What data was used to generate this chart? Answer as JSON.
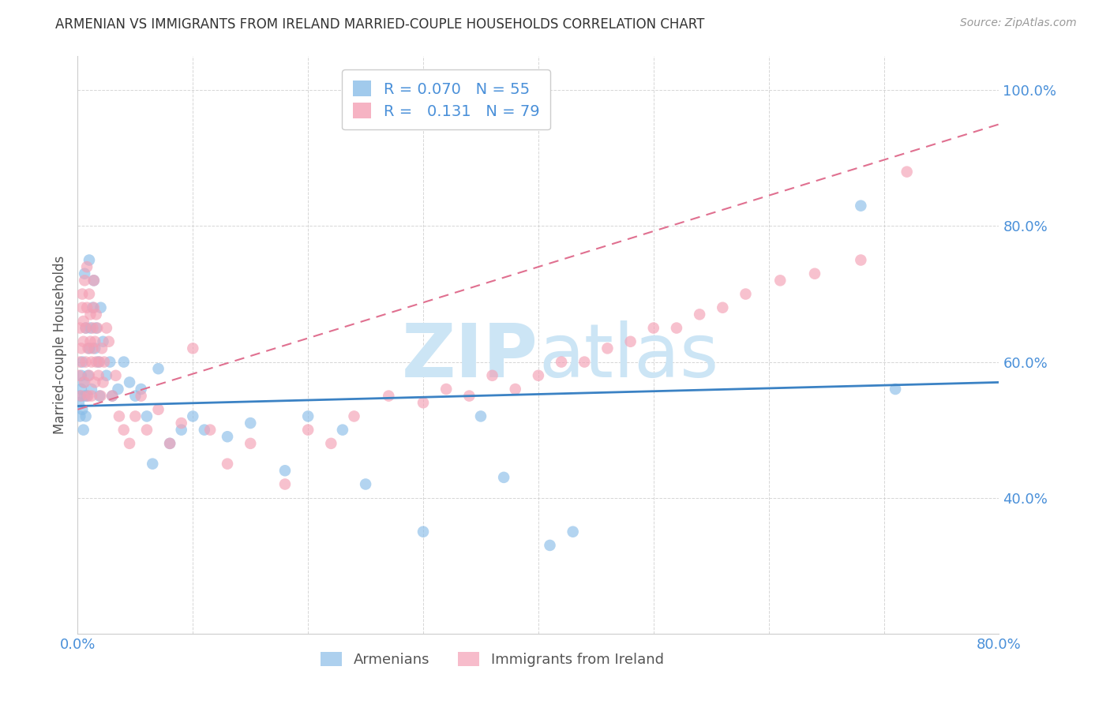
{
  "title": "ARMENIAN VS IMMIGRANTS FROM IRELAND MARRIED-COUPLE HOUSEHOLDS CORRELATION CHART",
  "source": "Source: ZipAtlas.com",
  "ylabel": "Married-couple Households",
  "xlim": [
    0,
    0.8
  ],
  "ylim": [
    0.2,
    1.05
  ],
  "xticks": [
    0.0,
    0.1,
    0.2,
    0.3,
    0.4,
    0.5,
    0.6,
    0.7,
    0.8
  ],
  "xticklabels": [
    "0.0%",
    "",
    "",
    "",
    "",
    "",
    "",
    "",
    "80.0%"
  ],
  "yticks": [
    0.4,
    0.6,
    0.8,
    1.0
  ],
  "yticklabels": [
    "40.0%",
    "60.0%",
    "80.0%",
    "100.0%"
  ],
  "legend1_label": "Armenians",
  "legend2_label": "Immigrants from Ireland",
  "R_armenian": 0.07,
  "N_armenian": 55,
  "R_ireland": 0.131,
  "N_ireland": 79,
  "color_armenian": "#8abde8",
  "color_ireland": "#f4a0b5",
  "color_armenian_line": "#3b82c4",
  "color_ireland_line": "#e07090",
  "watermark_color": "#cce5f5",
  "background_color": "#ffffff",
  "armenian_x": [
    0.001,
    0.002,
    0.002,
    0.003,
    0.003,
    0.004,
    0.004,
    0.005,
    0.005,
    0.006,
    0.006,
    0.007,
    0.007,
    0.008,
    0.009,
    0.01,
    0.01,
    0.011,
    0.012,
    0.013,
    0.014,
    0.015,
    0.016,
    0.018,
    0.019,
    0.02,
    0.022,
    0.025,
    0.028,
    0.03,
    0.035,
    0.04,
    0.045,
    0.05,
    0.055,
    0.06,
    0.065,
    0.07,
    0.08,
    0.09,
    0.1,
    0.11,
    0.13,
    0.15,
    0.18,
    0.2,
    0.23,
    0.25,
    0.3,
    0.35,
    0.37,
    0.41,
    0.43,
    0.68,
    0.71
  ],
  "armenian_y": [
    0.54,
    0.52,
    0.55,
    0.58,
    0.56,
    0.53,
    0.6,
    0.57,
    0.5,
    0.55,
    0.73,
    0.52,
    0.65,
    0.55,
    0.58,
    0.62,
    0.75,
    0.65,
    0.56,
    0.68,
    0.72,
    0.62,
    0.65,
    0.6,
    0.55,
    0.68,
    0.63,
    0.58,
    0.6,
    0.55,
    0.56,
    0.6,
    0.57,
    0.55,
    0.56,
    0.52,
    0.45,
    0.59,
    0.48,
    0.5,
    0.52,
    0.5,
    0.49,
    0.51,
    0.44,
    0.52,
    0.5,
    0.42,
    0.35,
    0.52,
    0.43,
    0.33,
    0.35,
    0.83,
    0.56
  ],
  "ireland_x": [
    0.001,
    0.002,
    0.002,
    0.003,
    0.003,
    0.004,
    0.004,
    0.005,
    0.005,
    0.006,
    0.006,
    0.007,
    0.007,
    0.008,
    0.008,
    0.009,
    0.009,
    0.01,
    0.01,
    0.011,
    0.011,
    0.012,
    0.012,
    0.013,
    0.013,
    0.014,
    0.014,
    0.015,
    0.015,
    0.016,
    0.016,
    0.017,
    0.018,
    0.019,
    0.02,
    0.021,
    0.022,
    0.023,
    0.025,
    0.027,
    0.03,
    0.033,
    0.036,
    0.04,
    0.045,
    0.05,
    0.055,
    0.06,
    0.07,
    0.08,
    0.09,
    0.1,
    0.115,
    0.13,
    0.15,
    0.18,
    0.2,
    0.22,
    0.24,
    0.27,
    0.3,
    0.32,
    0.34,
    0.36,
    0.38,
    0.4,
    0.42,
    0.44,
    0.46,
    0.48,
    0.5,
    0.52,
    0.54,
    0.56,
    0.58,
    0.61,
    0.64,
    0.68,
    0.72
  ],
  "ireland_y": [
    0.58,
    0.6,
    0.65,
    0.55,
    0.62,
    0.68,
    0.7,
    0.63,
    0.66,
    0.72,
    0.57,
    0.65,
    0.6,
    0.68,
    0.74,
    0.55,
    0.62,
    0.58,
    0.7,
    0.63,
    0.67,
    0.55,
    0.6,
    0.65,
    0.62,
    0.68,
    0.72,
    0.63,
    0.57,
    0.67,
    0.6,
    0.65,
    0.58,
    0.6,
    0.55,
    0.62,
    0.57,
    0.6,
    0.65,
    0.63,
    0.55,
    0.58,
    0.52,
    0.5,
    0.48,
    0.52,
    0.55,
    0.5,
    0.53,
    0.48,
    0.51,
    0.62,
    0.5,
    0.45,
    0.48,
    0.42,
    0.5,
    0.48,
    0.52,
    0.55,
    0.54,
    0.56,
    0.55,
    0.58,
    0.56,
    0.58,
    0.6,
    0.6,
    0.62,
    0.63,
    0.65,
    0.65,
    0.67,
    0.68,
    0.7,
    0.72,
    0.73,
    0.75,
    0.88
  ],
  "arm_trend_x0": 0.0,
  "arm_trend_y0": 0.535,
  "arm_trend_x1": 0.8,
  "arm_trend_y1": 0.57,
  "ire_trend_x0": 0.0,
  "ire_trend_y0": 0.53,
  "ire_trend_x1": 0.8,
  "ire_trend_y1": 0.95
}
